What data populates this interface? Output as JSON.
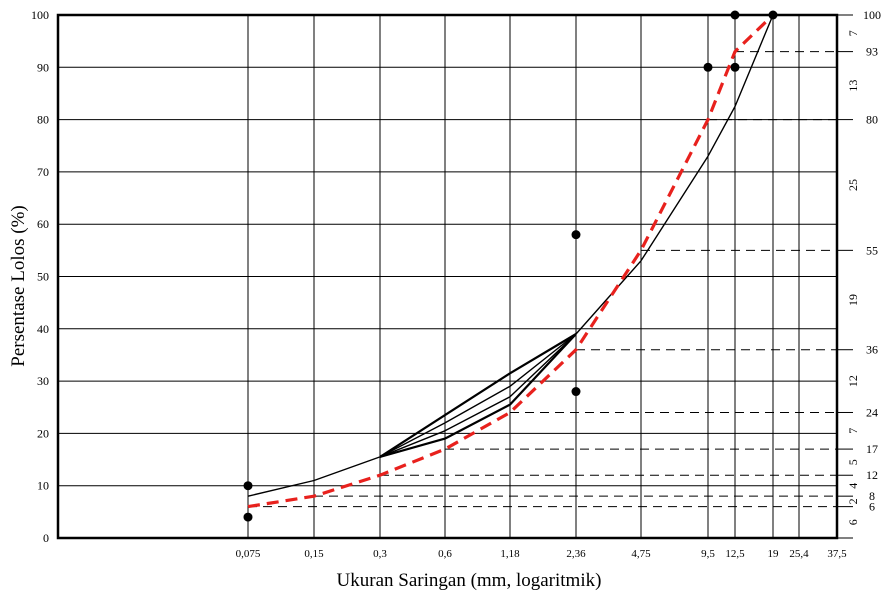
{
  "chart_data": {
    "type": "line",
    "xlabel": "Ukuran Saringan (mm, logaritmik)",
    "ylabel": "Persentase Lolos (%)",
    "ylim": [
      0,
      100
    ],
    "x_scale": "log",
    "x_ticks": [
      "0,075",
      "0,15",
      "0,3",
      "0,6",
      "1,18",
      "2,36",
      "4,75",
      "9,5",
      "12,5",
      "19",
      "25,4",
      "37,5"
    ],
    "y_ticks": [
      "0",
      "10",
      "20",
      "30",
      "40",
      "50",
      "60",
      "70",
      "80",
      "90",
      "100"
    ],
    "grid": true,
    "series": [
      {
        "style": "red-dashed",
        "color": "#e8211d",
        "points": [
          [
            0.075,
            6
          ],
          [
            0.15,
            8
          ],
          [
            0.3,
            12
          ],
          [
            0.6,
            17
          ],
          [
            1.18,
            24
          ],
          [
            2.36,
            36
          ],
          [
            4.75,
            55
          ],
          [
            9.5,
            80
          ],
          [
            12.5,
            93
          ],
          [
            19,
            100
          ]
        ]
      },
      {
        "style": "black-solid",
        "color": "#000000",
        "points": [
          [
            0.075,
            8
          ],
          [
            0.15,
            11
          ],
          [
            0.3,
            15.5
          ],
          [
            0.6,
            22
          ],
          [
            1.18,
            29
          ],
          [
            2.36,
            39
          ],
          [
            4.75,
            53
          ],
          [
            9.5,
            73
          ],
          [
            12.5,
            82.5
          ],
          [
            19,
            100
          ]
        ]
      },
      {
        "style": "black-solid-thick",
        "color": "#000000",
        "points": [
          [
            0.3,
            15.5
          ],
          [
            0.6,
            23.5
          ],
          [
            1.18,
            31.5
          ],
          [
            2.36,
            39
          ]
        ]
      },
      {
        "style": "black-solid-thick",
        "color": "#000000",
        "points": [
          [
            0.3,
            15.5
          ],
          [
            0.6,
            19
          ],
          [
            1.18,
            25.5
          ],
          [
            2.36,
            39
          ]
        ]
      },
      {
        "style": "black-solid",
        "color": "#000000",
        "points": [
          [
            0.3,
            15.5
          ],
          [
            0.6,
            20.5
          ],
          [
            1.18,
            27
          ],
          [
            2.36,
            39
          ]
        ]
      }
    ],
    "control_points": [
      [
        0.075,
        10
      ],
      [
        0.075,
        4
      ],
      [
        2.36,
        58
      ],
      [
        2.36,
        28
      ],
      [
        9.5,
        90
      ],
      [
        12.5,
        90
      ],
      [
        12.5,
        100
      ],
      [
        19,
        100
      ]
    ],
    "reference_levels": [
      {
        "value": 6,
        "label": "6"
      },
      {
        "value": 8,
        "label": "8"
      },
      {
        "value": 12,
        "label": "12"
      },
      {
        "value": 17,
        "label": "17"
      },
      {
        "value": 24,
        "label": "24"
      },
      {
        "value": 36,
        "label": "36"
      },
      {
        "value": 55,
        "label": "55"
      },
      {
        "value": 80,
        "label": "80"
      },
      {
        "value": 93,
        "label": "93"
      },
      {
        "value": 100,
        "label": "100"
      }
    ],
    "difference_labels": [
      {
        "low": 0,
        "high": 6,
        "label": "6"
      },
      {
        "low": 6,
        "high": 8,
        "label": "2"
      },
      {
        "low": 8,
        "high": 12,
        "label": "4"
      },
      {
        "low": 12,
        "high": 17,
        "label": "5"
      },
      {
        "low": 17,
        "high": 24,
        "label": "7"
      },
      {
        "low": 24,
        "high": 36,
        "label": "12"
      },
      {
        "low": 36,
        "high": 55,
        "label": "19"
      },
      {
        "low": 55,
        "high": 80,
        "label": "25"
      },
      {
        "low": 80,
        "high": 93,
        "label": "13"
      },
      {
        "low": 93,
        "high": 100,
        "label": "7"
      }
    ]
  }
}
